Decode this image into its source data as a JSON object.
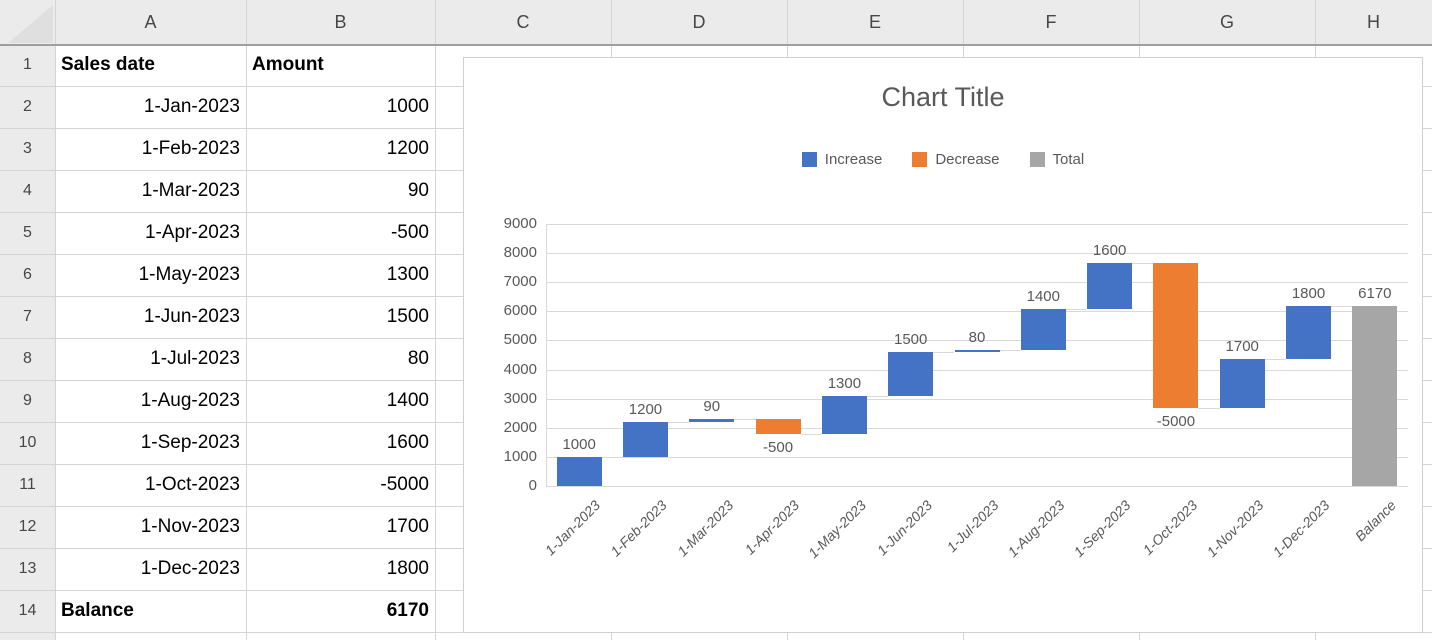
{
  "spreadsheet": {
    "column_headers": [
      "A",
      "B",
      "C",
      "D",
      "E",
      "F",
      "G",
      "H"
    ],
    "rows": [
      {
        "n": "1",
        "a": "Sales date",
        "b": "Amount",
        "style": "header"
      },
      {
        "n": "2",
        "a": "1-Jan-2023",
        "b": "1000",
        "style": "data"
      },
      {
        "n": "3",
        "a": "1-Feb-2023",
        "b": "1200",
        "style": "data"
      },
      {
        "n": "4",
        "a": "1-Mar-2023",
        "b": "90",
        "style": "data"
      },
      {
        "n": "5",
        "a": "1-Apr-2023",
        "b": "-500",
        "style": "data"
      },
      {
        "n": "6",
        "a": "1-May-2023",
        "b": "1300",
        "style": "data"
      },
      {
        "n": "7",
        "a": "1-Jun-2023",
        "b": "1500",
        "style": "data"
      },
      {
        "n": "8",
        "a": "1-Jul-2023",
        "b": "80",
        "style": "data"
      },
      {
        "n": "9",
        "a": "1-Aug-2023",
        "b": "1400",
        "style": "data"
      },
      {
        "n": "10",
        "a": "1-Sep-2023",
        "b": "1600",
        "style": "data"
      },
      {
        "n": "11",
        "a": "1-Oct-2023",
        "b": "-5000",
        "style": "data"
      },
      {
        "n": "12",
        "a": "1-Nov-2023",
        "b": "1700",
        "style": "data"
      },
      {
        "n": "13",
        "a": "1-Dec-2023",
        "b": "1800",
        "style": "data"
      },
      {
        "n": "14",
        "a": "Balance",
        "b": "6170",
        "style": "total"
      }
    ]
  },
  "chart_data": {
    "type": "bar",
    "variant": "waterfall",
    "title": "Chart Title",
    "categories": [
      "1-Jan-2023",
      "1-Feb-2023",
      "1-Mar-2023",
      "1-Apr-2023",
      "1-May-2023",
      "1-Jun-2023",
      "1-Jul-2023",
      "1-Aug-2023",
      "1-Sep-2023",
      "1-Oct-2023",
      "1-Nov-2023",
      "1-Dec-2023",
      "Balance"
    ],
    "values": [
      1000,
      1200,
      90,
      -500,
      1300,
      1500,
      80,
      1400,
      1600,
      -5000,
      1700,
      1800,
      6170
    ],
    "kinds": [
      "increase",
      "increase",
      "increase",
      "decrease",
      "increase",
      "increase",
      "increase",
      "increase",
      "increase",
      "decrease",
      "increase",
      "increase",
      "total"
    ],
    "data_labels": [
      "1000",
      "1200",
      "90",
      "-500",
      "1300",
      "1500",
      "80",
      "1400",
      "1600",
      "-5000",
      "1700",
      "1800",
      "6170"
    ],
    "cumulative_ends": [
      1000,
      2200,
      2290,
      1790,
      3090,
      4590,
      4670,
      6070,
      7670,
      2670,
      4370,
      6170,
      6170
    ],
    "legend": [
      {
        "label": "Increase",
        "color": "#4472C4"
      },
      {
        "label": "Decrease",
        "color": "#ED7D31"
      },
      {
        "label": "Total",
        "color": "#A6A6A6"
      }
    ],
    "colors": {
      "increase": "#4472C4",
      "decrease": "#ED7D31",
      "total": "#A6A6A6",
      "text": "#595959",
      "gridline": "#D9D9D9"
    },
    "ylim": [
      0,
      9000
    ],
    "ytick_labels": [
      "0",
      "1000",
      "2000",
      "3000",
      "4000",
      "5000",
      "6000",
      "7000",
      "8000",
      "9000"
    ],
    "grid": true,
    "legend_position": "top"
  }
}
